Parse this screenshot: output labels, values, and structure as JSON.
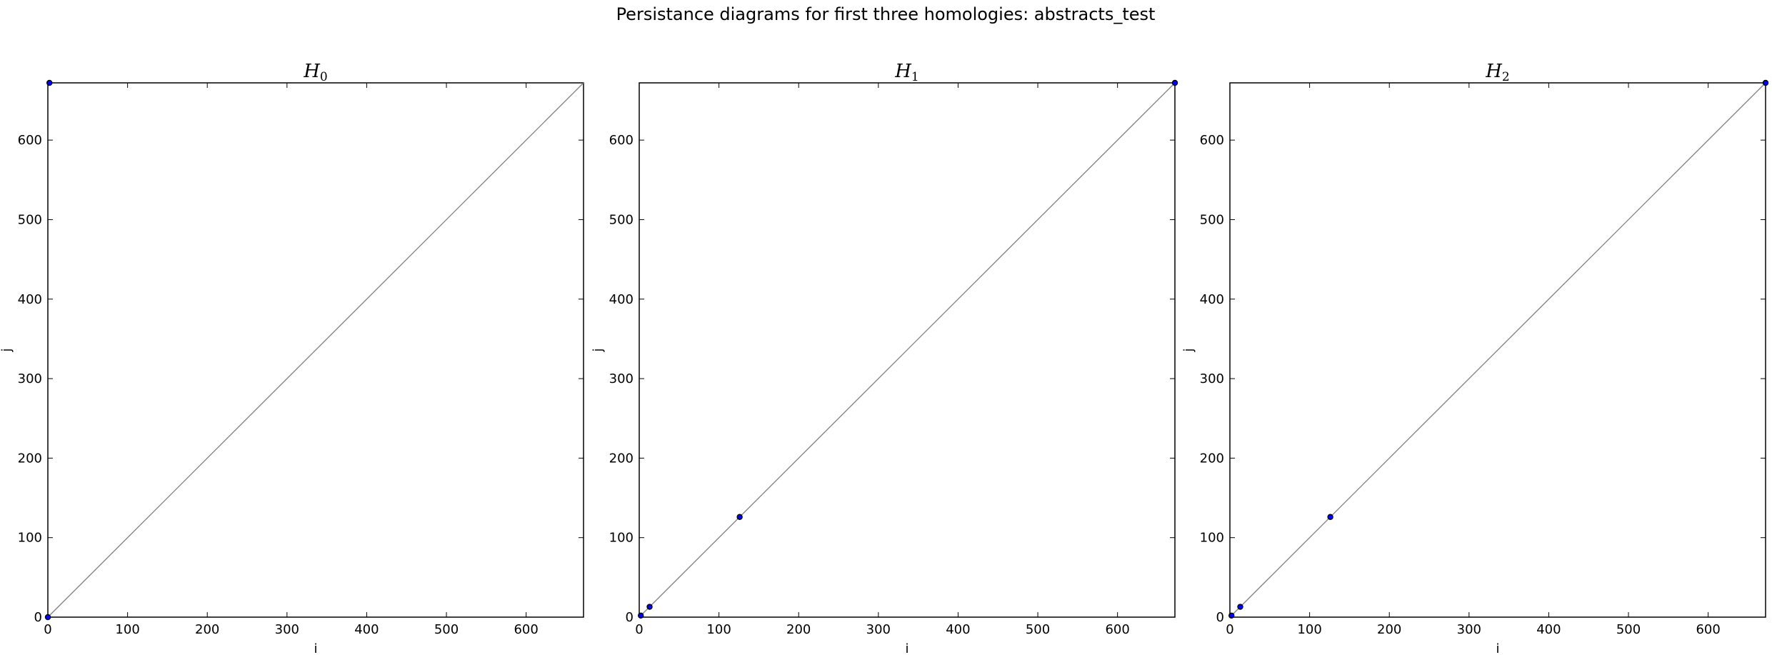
{
  "figure": {
    "title": "Persistance diagrams for first three homologies: abstracts_test"
  },
  "colors": {
    "point_fill": "#0000ff",
    "diagonal": "#808080",
    "frame": "#000000"
  },
  "chart_data": [
    {
      "type": "scatter",
      "title": "H",
      "title_subscript": "0",
      "xlabel": "i",
      "ylabel": "j",
      "xlim": [
        0,
        672
      ],
      "ylim": [
        0,
        672
      ],
      "xticks": [
        0,
        100,
        200,
        300,
        400,
        500,
        600
      ],
      "yticks": [
        0,
        100,
        200,
        300,
        400,
        500,
        600
      ],
      "diagonal": true,
      "grid": false,
      "points": [
        {
          "x": 0,
          "y": 0
        },
        {
          "x": 2,
          "y": 672
        }
      ]
    },
    {
      "type": "scatter",
      "title": "H",
      "title_subscript": "1",
      "xlabel": "i",
      "ylabel": "j",
      "xlim": [
        0,
        672
      ],
      "ylim": [
        0,
        672
      ],
      "xticks": [
        0,
        100,
        200,
        300,
        400,
        500,
        600
      ],
      "yticks": [
        0,
        100,
        200,
        300,
        400,
        500,
        600
      ],
      "diagonal": true,
      "grid": false,
      "points": [
        {
          "x": 2,
          "y": 2
        },
        {
          "x": 13,
          "y": 13
        },
        {
          "x": 126,
          "y": 126
        },
        {
          "x": 672,
          "y": 672
        }
      ]
    },
    {
      "type": "scatter",
      "title": "H",
      "title_subscript": "2",
      "xlabel": "i",
      "ylabel": "j",
      "xlim": [
        0,
        672
      ],
      "ylim": [
        0,
        672
      ],
      "xticks": [
        0,
        100,
        200,
        300,
        400,
        500,
        600
      ],
      "yticks": [
        0,
        100,
        200,
        300,
        400,
        500,
        600
      ],
      "diagonal": true,
      "grid": false,
      "points": [
        {
          "x": 2,
          "y": 2
        },
        {
          "x": 13,
          "y": 13
        },
        {
          "x": 126,
          "y": 126
        },
        {
          "x": 672,
          "y": 672
        }
      ]
    }
  ]
}
